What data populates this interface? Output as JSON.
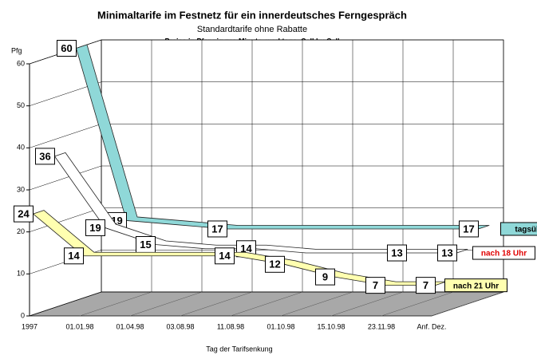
{
  "chart_data": {
    "type": "ribbon3d",
    "title": "Minimaltarife im Festnetz für ein innerdeutsches Ferngespräch",
    "subtitle": "Standardtarife ohne Rabatte",
    "note": "Preise in Pfennig pro Minute, werktags, Call by Call",
    "y_label": "Pfg",
    "x_label": "Tag der Tarifsenkung",
    "categories": [
      "1997",
      "01.01.98",
      "01.04.98",
      "03.08.98",
      "11.08.98",
      "01.10.98",
      "15.10.98",
      "23.11.98",
      "Anf. Dez."
    ],
    "series": [
      {
        "name": "tagsüber",
        "color": "#8fd8d8",
        "label_color": "#000000",
        "values": [
          60,
          19,
          18,
          17,
          17,
          17,
          17,
          17,
          17
        ],
        "value_labels": [
          "60",
          "19",
          null,
          "17",
          null,
          null,
          null,
          null,
          "17"
        ]
      },
      {
        "name": "nach 18 Uhr",
        "color": "#ffffff",
        "label_color": "#e00000",
        "values": [
          36,
          19,
          15,
          14,
          14,
          13,
          13,
          13,
          13
        ],
        "value_labels": [
          "36",
          "19",
          "15",
          null,
          "14",
          null,
          null,
          "13",
          "13"
        ]
      },
      {
        "name": "nach 21 Uhr",
        "color": "#ffffb0",
        "label_color": "#000000",
        "values": [
          24,
          14,
          14,
          14,
          14,
          12,
          9,
          7,
          7
        ],
        "value_labels": [
          "24",
          "14",
          null,
          null,
          "14",
          "12",
          "9",
          "7",
          "7"
        ]
      }
    ],
    "ylim": [
      0,
      60
    ],
    "yticks": [
      0,
      10,
      20,
      30,
      40,
      50,
      60
    ],
    "grid": true
  }
}
